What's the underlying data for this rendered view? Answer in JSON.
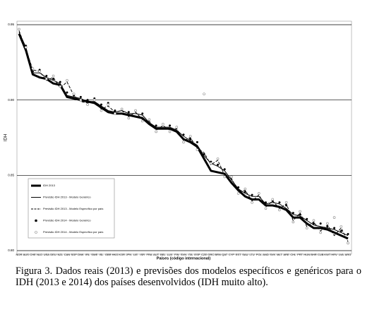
{
  "chart_data": {
    "type": "line",
    "caption": "Figura 3. Dados reais (2013) e previsões dos modelos específicos e genéricos para o IDH (2013 e 2014) dos países desenvolvidos (IDH muito alto).",
    "xlabel": "Países (código internacional)",
    "ylabel": "IDH",
    "categories": [
      "NOR",
      "AUS",
      "CHE",
      "NLD",
      "USA",
      "DEU",
      "NZL",
      "CAN",
      "SGP",
      "DNK",
      "IRL",
      "SWE",
      "ISL",
      "GBR",
      "HKG",
      "KOR",
      "JPN",
      "LIE",
      "ISR",
      "FRA",
      "AUT",
      "BEL",
      "LUX",
      "FIN",
      "SVN",
      "ITA",
      "ESP",
      "CZE",
      "GRC",
      "BRN",
      "QAT",
      "CYP",
      "EST",
      "SAU",
      "LTU",
      "POL",
      "AND",
      "SVK",
      "MLT",
      "ARE",
      "CHL",
      "PRT",
      "HUN",
      "BHR",
      "CUB",
      "KWT",
      "HRV",
      "LVA",
      "ARG"
    ],
    "ylim": [
      0.8,
      0.95
    ],
    "yticks": [
      {
        "value": 0.8,
        "label": "0.80"
      },
      0.85,
      {
        "value": 0.9,
        "label": "0.90"
      },
      0.95
    ],
    "grid": true,
    "legend": "lower left",
    "series": [
      {
        "name": "IDH 2013",
        "color": "#000000",
        "line_style": "solid",
        "line_width": 3,
        "marker": "none",
        "values": [
          0.944,
          0.933,
          0.917,
          0.915,
          0.914,
          0.911,
          0.91,
          0.902,
          0.901,
          0.9,
          0.899,
          0.898,
          0.895,
          0.892,
          0.891,
          0.891,
          0.89,
          0.889,
          0.888,
          0.884,
          0.881,
          0.881,
          0.881,
          0.879,
          0.874,
          0.872,
          0.869,
          0.861,
          0.853,
          0.852,
          0.851,
          0.845,
          0.84,
          0.836,
          0.834,
          0.834,
          0.83,
          0.83,
          0.829,
          0.827,
          0.822,
          0.822,
          0.818,
          0.815,
          0.815,
          0.814,
          0.812,
          0.81,
          0.808
        ]
      },
      {
        "name": "Previsão IDH 2013 - Modelo Genérico",
        "color": "#000000",
        "line_style": "solid",
        "line_width": 1,
        "marker": "none",
        "values": [
          0.945,
          0.935,
          0.918,
          0.918,
          0.915,
          0.913,
          0.911,
          0.903,
          0.902,
          0.901,
          0.899,
          0.899,
          0.896,
          0.893,
          0.892,
          0.893,
          0.891,
          0.891,
          0.89,
          0.885,
          0.882,
          0.882,
          0.882,
          0.88,
          0.876,
          0.873,
          0.87,
          0.863,
          0.858,
          0.856,
          0.853,
          0.847,
          0.841,
          0.838,
          0.836,
          0.836,
          0.831,
          0.832,
          0.831,
          0.828,
          0.824,
          0.823,
          0.82,
          0.817,
          0.816,
          0.815,
          0.814,
          0.812,
          0.81
        ]
      },
      {
        "name": "Previsão IDH 2013 - Modelo Específico por país",
        "color": "#000000",
        "line_style": "dashed",
        "line_width": 1,
        "marker": "none",
        "values": [
          0.946,
          0.934,
          0.92,
          0.919,
          0.913,
          0.915,
          0.908,
          0.912,
          0.903,
          0.899,
          0.898,
          0.899,
          0.894,
          0.896,
          0.892,
          0.893,
          0.889,
          0.892,
          0.887,
          0.886,
          0.88,
          0.883,
          0.88,
          0.881,
          0.873,
          0.875,
          0.868,
          0.865,
          0.857,
          0.86,
          0.85,
          0.848,
          0.839,
          0.84,
          0.833,
          0.837,
          0.829,
          0.833,
          0.828,
          0.831,
          0.82,
          0.825,
          0.816,
          0.819,
          0.813,
          0.817,
          0.81,
          0.815,
          0.806
        ]
      },
      {
        "name": "Previsão IDH 2014 - Modelo Genérico",
        "color": "#000000",
        "line_style": "none",
        "line_width": 0,
        "marker": "filled",
        "values": [
          0.947,
          0.936,
          0.919,
          0.92,
          0.916,
          0.914,
          0.912,
          0.905,
          0.903,
          0.902,
          0.9,
          0.901,
          0.897,
          0.898,
          0.893,
          0.894,
          0.892,
          0.893,
          0.891,
          0.887,
          0.883,
          0.884,
          0.883,
          0.882,
          0.877,
          0.874,
          0.872,
          0.864,
          0.859,
          0.857,
          0.854,
          0.849,
          0.842,
          0.839,
          0.837,
          0.838,
          0.832,
          0.833,
          0.832,
          0.83,
          0.825,
          0.824,
          0.821,
          0.818,
          0.818,
          0.816,
          0.815,
          0.813,
          0.811
        ]
      },
      {
        "name": "Previsão IDH 2014 - Modelo Específico por país",
        "color": "#888888",
        "line_style": "none",
        "line_width": 0,
        "marker": "open",
        "values": [
          0.947,
          0.935,
          0.921,
          0.919,
          0.914,
          0.916,
          0.909,
          0.913,
          0.904,
          0.9,
          0.897,
          0.9,
          0.893,
          0.897,
          0.891,
          0.894,
          0.888,
          0.893,
          0.886,
          0.887,
          0.879,
          0.884,
          0.879,
          0.882,
          0.872,
          0.876,
          0.867,
          0.904,
          0.858,
          0.861,
          0.849,
          0.849,
          0.838,
          0.841,
          0.832,
          0.838,
          0.828,
          0.834,
          0.827,
          0.832,
          0.819,
          0.826,
          0.815,
          0.82,
          0.812,
          0.818,
          0.822,
          0.816,
          0.805
        ]
      }
    ]
  }
}
